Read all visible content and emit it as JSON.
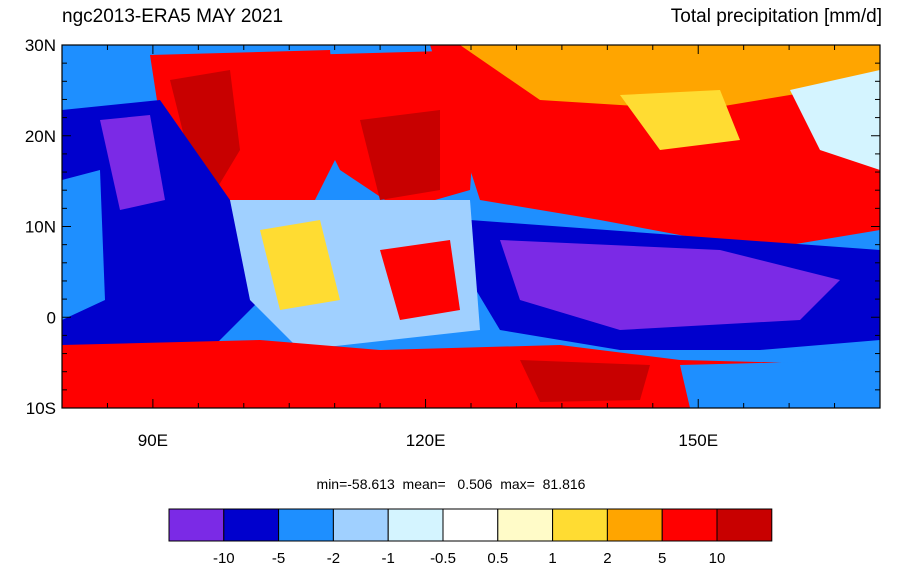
{
  "title": "ngc2013-ERA5 MAY 2021",
  "variable": "Total precipitation [mm/d]",
  "map": {
    "lon_range": [
      80,
      170
    ],
    "lat_range": [
      -10,
      30
    ],
    "lat_ticks": [
      {
        "value": 30,
        "label": "30N"
      },
      {
        "value": 20,
        "label": "20N"
      },
      {
        "value": 10,
        "label": "10N"
      },
      {
        "value": 0,
        "label": "0"
      },
      {
        "value": -10,
        "label": "10S"
      }
    ],
    "lon_ticks": [
      {
        "value": 90,
        "label": "90E"
      },
      {
        "value": 120,
        "label": "120E"
      },
      {
        "value": 150,
        "label": "150E"
      }
    ]
  },
  "stats": {
    "min_label": "min=",
    "min": "-58.613",
    "mean_label": "mean=",
    "mean": "0.506",
    "max_label": "max=",
    "max": "81.816"
  },
  "colorbar": {
    "colors": [
      "#7b2ae6",
      "#0000cd",
      "#1e8fff",
      "#a0d0ff",
      "#d4f4ff",
      "#ffffff",
      "#fffbc8",
      "#ffdc32",
      "#ffa500",
      "#ff0000",
      "#c80000"
    ],
    "labels": [
      "-10",
      "-5",
      "-2",
      "-1",
      "-0.5",
      "0.5",
      "1",
      "2",
      "5",
      "10"
    ]
  }
}
